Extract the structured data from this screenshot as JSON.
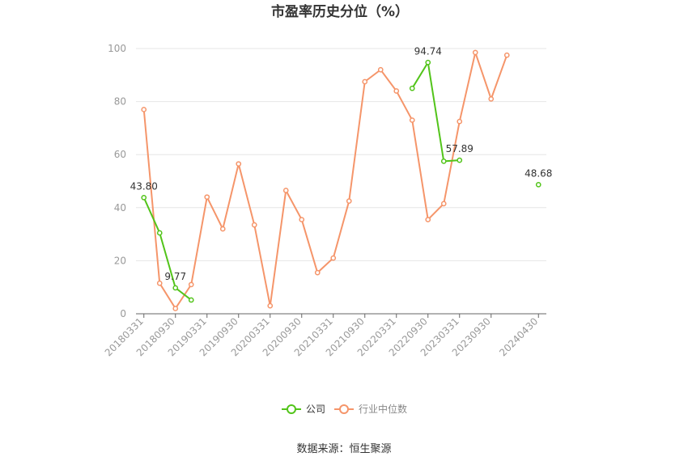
{
  "chart_data": {
    "type": "line",
    "title": "市盈率历史分位（%）",
    "source": "数据来源：恒生聚源",
    "ylim": [
      0,
      100
    ],
    "yticks": [
      0,
      20,
      40,
      60,
      80,
      100
    ],
    "categories": [
      "20180331",
      "20180630",
      "20180930",
      "20181231",
      "20190331",
      "20190630",
      "20190930",
      "20191231",
      "20200331",
      "20200630",
      "20200930",
      "20201231",
      "20210331",
      "20210630",
      "20210930",
      "20211231",
      "20220331",
      "20220630",
      "20220930",
      "20221231",
      "20230331",
      "20230630",
      "20230930",
      "20231231",
      "20240331",
      "20240430"
    ],
    "tick_labels": [
      "20180331",
      "20180930",
      "20190331",
      "20190930",
      "20200331",
      "20200930",
      "20210331",
      "20210930",
      "20220331",
      "20220930",
      "20230331",
      "20230930",
      "20240430"
    ],
    "grid": true,
    "legend_position": "bottom",
    "series": [
      {
        "name": "公司",
        "color": "#52c41a",
        "values": [
          43.8,
          30.5,
          9.77,
          5.2,
          null,
          null,
          null,
          null,
          null,
          null,
          null,
          null,
          null,
          null,
          null,
          null,
          null,
          85.0,
          94.74,
          57.5,
          57.89,
          null,
          null,
          null,
          null,
          48.68
        ],
        "labels": [
          {
            "index": 0,
            "text": "43.80"
          },
          {
            "index": 2,
            "text": "9.77"
          },
          {
            "index": 18,
            "text": "94.74"
          },
          {
            "index": 20,
            "text": "57.89"
          },
          {
            "index": 25,
            "text": "48.68"
          }
        ]
      },
      {
        "name": "行业中位数",
        "color": "#f5956a",
        "values": [
          77.0,
          11.5,
          2.0,
          11.0,
          44.0,
          32.0,
          56.5,
          33.5,
          3.0,
          46.5,
          35.5,
          15.5,
          21.0,
          42.5,
          87.5,
          92.0,
          84.0,
          73.0,
          35.5,
          41.5,
          72.5,
          98.5,
          81.0,
          97.5,
          null,
          null
        ]
      }
    ]
  }
}
